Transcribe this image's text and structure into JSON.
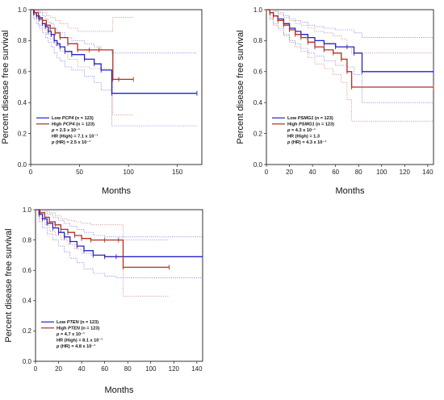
{
  "chart_data": [
    {
      "type": "line",
      "panel": "top-left",
      "xlabel": "Months",
      "ylabel": "Percent disease free survival",
      "xlim": [
        0,
        175
      ],
      "ylim": [
        0,
        1.0
      ],
      "x_ticks": [
        0,
        50,
        100,
        150
      ],
      "y_ticks": [
        0.0,
        0.2,
        0.4,
        0.6,
        0.8,
        1.0
      ],
      "y_tick_labels": [
        "0.0",
        "0.2",
        "0.4",
        "0.6",
        "0.8",
        "1.0"
      ],
      "series": [
        {
          "name": "Low",
          "gene": "PCP4",
          "n_text": "(n = 123)",
          "color": "#2222cc",
          "x": [
            0,
            3,
            6,
            9,
            12,
            15,
            18,
            21,
            24,
            27,
            30,
            35,
            42,
            55,
            65,
            72,
            83,
            170
          ],
          "y": [
            1.0,
            0.98,
            0.96,
            0.94,
            0.91,
            0.89,
            0.86,
            0.84,
            0.8,
            0.78,
            0.76,
            0.73,
            0.71,
            0.68,
            0.65,
            0.61,
            0.46,
            0.46
          ],
          "ci_upper": [
            1.0,
            1.0,
            0.99,
            0.98,
            0.96,
            0.94,
            0.92,
            0.91,
            0.88,
            0.86,
            0.85,
            0.82,
            0.8,
            0.78,
            0.76,
            0.74,
            0.72,
            0.72
          ],
          "ci_lower": [
            1.0,
            0.94,
            0.91,
            0.88,
            0.85,
            0.82,
            0.79,
            0.76,
            0.72,
            0.69,
            0.67,
            0.63,
            0.61,
            0.57,
            0.53,
            0.48,
            0.25,
            0.25
          ]
        },
        {
          "name": "High",
          "gene": "PCP4",
          "n_text": "(n = 123)",
          "color": "#b03020",
          "x": [
            0,
            4,
            8,
            12,
            16,
            20,
            25,
            30,
            38,
            48,
            60,
            70,
            84,
            90,
            105
          ],
          "y": [
            1.0,
            0.98,
            0.95,
            0.93,
            0.9,
            0.88,
            0.85,
            0.82,
            0.78,
            0.74,
            0.74,
            0.74,
            0.55,
            0.55,
            0.55
          ],
          "ci_upper": [
            1.0,
            1.0,
            0.99,
            0.98,
            0.96,
            0.95,
            0.93,
            0.91,
            0.88,
            0.86,
            0.86,
            0.86,
            0.95,
            0.95,
            0.95
          ],
          "ci_lower": [
            1.0,
            0.94,
            0.9,
            0.87,
            0.84,
            0.81,
            0.77,
            0.73,
            0.68,
            0.63,
            0.62,
            0.62,
            0.32,
            0.32,
            0.32
          ]
        }
      ],
      "legend": {
        "entries": [
          {
            "prefix": "Low ",
            "gene": "PCP4",
            "suffix": " (n = 123)"
          },
          {
            "prefix": "High ",
            "gene": "PCP4",
            "suffix": " (n = 123)"
          }
        ],
        "stats": [
          {
            "label": "p",
            "italic": true,
            "text": " = 2.5 x 10⁻¹"
          },
          {
            "label": "",
            "italic": false,
            "text": "HR (High) = 7.1 x 10⁻¹"
          },
          {
            "label": "p",
            "italic": true,
            "text": " (HR) = 2.5 x 10⁻¹"
          }
        ]
      }
    },
    {
      "type": "line",
      "panel": "top-right",
      "xlabel": "Months",
      "ylabel": "Percent disease free survival",
      "xlim": [
        0,
        145
      ],
      "ylim": [
        0,
        1.0
      ],
      "x_ticks": [
        0,
        20,
        40,
        60,
        80,
        100,
        120,
        140
      ],
      "y_ticks": [
        0.0,
        0.2,
        0.4,
        0.6,
        0.8,
        1.0
      ],
      "y_tick_labels": [
        "0.0",
        "0.2",
        "0.4",
        "0.6",
        "0.8",
        "1.0"
      ],
      "series": [
        {
          "name": "Low",
          "gene": "PSMG1",
          "n_text": "(n = 123)",
          "color": "#2222cc",
          "x": [
            0,
            3,
            6,
            10,
            15,
            20,
            25,
            30,
            36,
            42,
            50,
            60,
            70,
            76,
            83,
            145
          ],
          "y": [
            1.0,
            0.98,
            0.96,
            0.94,
            0.91,
            0.88,
            0.86,
            0.84,
            0.82,
            0.8,
            0.78,
            0.76,
            0.76,
            0.72,
            0.6,
            0.6
          ],
          "ci_upper": [
            1.0,
            1.0,
            0.99,
            0.98,
            0.96,
            0.94,
            0.93,
            0.92,
            0.9,
            0.89,
            0.88,
            0.87,
            0.87,
            0.85,
            0.82,
            0.82
          ],
          "ci_lower": [
            1.0,
            0.94,
            0.91,
            0.88,
            0.84,
            0.8,
            0.78,
            0.75,
            0.72,
            0.7,
            0.67,
            0.64,
            0.63,
            0.58,
            0.4,
            0.4
          ]
        },
        {
          "name": "High",
          "gene": "PSMG1",
          "n_text": "(n = 123)",
          "color": "#b03020",
          "x": [
            0,
            3,
            6,
            10,
            15,
            20,
            25,
            30,
            36,
            42,
            50,
            58,
            65,
            70,
            74,
            145
          ],
          "y": [
            1.0,
            0.98,
            0.96,
            0.93,
            0.9,
            0.87,
            0.84,
            0.82,
            0.79,
            0.76,
            0.74,
            0.72,
            0.68,
            0.6,
            0.5,
            0.5
          ],
          "ci_upper": [
            1.0,
            1.0,
            0.99,
            0.97,
            0.95,
            0.93,
            0.91,
            0.9,
            0.88,
            0.86,
            0.85,
            0.83,
            0.81,
            0.76,
            0.72,
            0.72
          ],
          "ci_lower": [
            1.0,
            0.94,
            0.9,
            0.87,
            0.83,
            0.79,
            0.76,
            0.73,
            0.69,
            0.65,
            0.62,
            0.58,
            0.53,
            0.42,
            0.28,
            0.28
          ]
        }
      ],
      "legend": {
        "entries": [
          {
            "prefix": "Low ",
            "gene": "PSMG1",
            "suffix": " (n = 123)"
          },
          {
            "prefix": "High ",
            "gene": "PSMG1",
            "suffix": " (n = 123)"
          }
        ],
        "stats": [
          {
            "label": "p",
            "italic": true,
            "text": " = 4.3 x 10⁻¹"
          },
          {
            "label": "",
            "italic": false,
            "text": "HR (High) = 1.3"
          },
          {
            "label": "p",
            "italic": true,
            "text": " (HR) = 4.3 x 10⁻¹"
          }
        ]
      }
    },
    {
      "type": "line",
      "panel": "bottom-left",
      "xlabel": "Months",
      "ylabel": "Percent disease free survival",
      "xlim": [
        0,
        145
      ],
      "ylim": [
        0,
        1.0
      ],
      "x_ticks": [
        0,
        20,
        40,
        60,
        80,
        100,
        120,
        140
      ],
      "y_ticks": [
        0.0,
        0.2,
        0.4,
        0.6,
        0.8,
        1.0
      ],
      "y_tick_labels": [
        "0.0",
        "0.2",
        "0.4",
        "0.6",
        "0.8",
        "1.0"
      ],
      "series": [
        {
          "name": "Low",
          "gene": "PTEN",
          "n_text": "(n = 123)",
          "color": "#2222cc",
          "x": [
            0,
            3,
            6,
            10,
            15,
            20,
            25,
            30,
            36,
            42,
            50,
            60,
            70,
            145
          ],
          "y": [
            1.0,
            0.97,
            0.94,
            0.91,
            0.88,
            0.85,
            0.82,
            0.79,
            0.76,
            0.73,
            0.7,
            0.69,
            0.69,
            0.69
          ],
          "ci_upper": [
            1.0,
            1.0,
            0.99,
            0.97,
            0.95,
            0.93,
            0.91,
            0.89,
            0.87,
            0.85,
            0.83,
            0.82,
            0.82,
            0.82
          ],
          "ci_lower": [
            1.0,
            0.92,
            0.88,
            0.84,
            0.8,
            0.76,
            0.72,
            0.68,
            0.65,
            0.61,
            0.58,
            0.56,
            0.55,
            0.55
          ]
        },
        {
          "name": "High",
          "gene": "PTEN",
          "n_text": "(n = 123)",
          "color": "#b03020",
          "x": [
            0,
            4,
            8,
            12,
            17,
            22,
            28,
            34,
            40,
            48,
            60,
            72,
            76,
            116
          ],
          "y": [
            1.0,
            0.98,
            0.95,
            0.92,
            0.9,
            0.87,
            0.85,
            0.83,
            0.81,
            0.8,
            0.8,
            0.8,
            0.62,
            0.62
          ],
          "ci_upper": [
            1.0,
            1.0,
            0.99,
            0.98,
            0.96,
            0.94,
            0.93,
            0.92,
            0.91,
            0.9,
            0.9,
            0.9,
            0.8,
            0.8
          ],
          "ci_lower": [
            1.0,
            0.94,
            0.9,
            0.86,
            0.83,
            0.8,
            0.77,
            0.74,
            0.71,
            0.7,
            0.69,
            0.69,
            0.43,
            0.43
          ]
        }
      ],
      "legend": {
        "entries": [
          {
            "prefix": "Low ",
            "gene": "PTEN",
            "suffix": " (n = 123)"
          },
          {
            "prefix": "High ",
            "gene": "PTEN",
            "suffix": " (n = 123)"
          }
        ],
        "stats": [
          {
            "label": "p",
            "italic": true,
            "text": " = 4.7 x 10⁻¹"
          },
          {
            "label": "",
            "italic": false,
            "text": "HR (High) = 8.1 x 10⁻¹"
          },
          {
            "label": "p",
            "italic": true,
            "text": " (HR) = 4.8 x 10⁻¹"
          }
        ]
      }
    }
  ]
}
